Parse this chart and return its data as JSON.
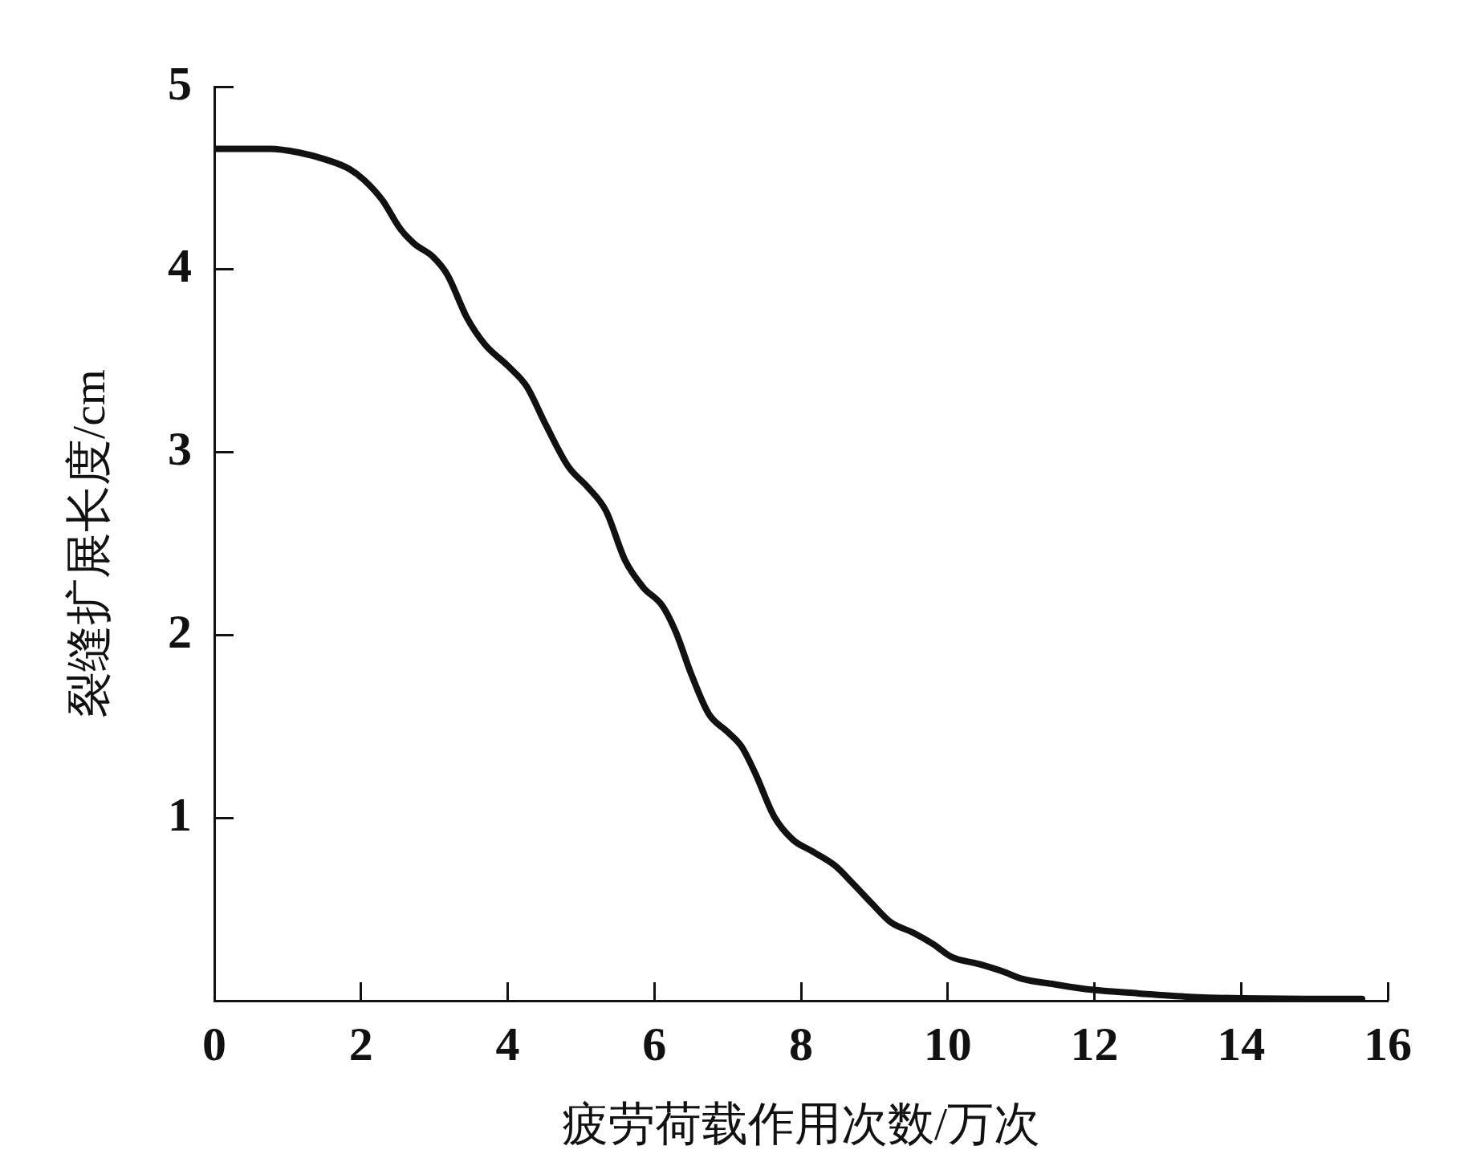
{
  "chart_data": {
    "type": "line",
    "xlabel": "疲劳荷载作用次数/万次",
    "ylabel": "裂缝扩展长度/cm",
    "x": [
      0,
      0.76,
      1.15,
      1.53,
      1.84,
      2.04,
      2.29,
      2.54,
      2.73,
      2.98,
      3.18,
      3.44,
      3.69,
      4.01,
      4.26,
      4.52,
      4.83,
      5.09,
      5.34,
      5.6,
      5.85,
      6.11,
      6.3,
      6.49,
      6.74,
      7.0,
      7.19,
      7.38,
      7.63,
      7.89,
      8.14,
      8.46,
      8.71,
      8.97,
      9.22,
      9.54,
      9.8,
      10.05,
      10.43,
      10.75,
      11.01,
      11.45,
      11.96,
      12.6,
      13.36,
      14.89,
      15.65
    ],
    "series": [
      {
        "color": "#111111",
        "values": [
          4.66,
          4.66,
          4.64,
          4.6,
          4.55,
          4.49,
          4.38,
          4.22,
          4.14,
          4.07,
          3.97,
          3.74,
          3.59,
          3.47,
          3.36,
          3.15,
          2.92,
          2.81,
          2.68,
          2.41,
          2.26,
          2.16,
          2.01,
          1.8,
          1.57,
          1.47,
          1.39,
          1.24,
          1.01,
          0.88,
          0.82,
          0.74,
          0.64,
          0.53,
          0.43,
          0.37,
          0.31,
          0.24,
          0.2,
          0.16,
          0.12,
          0.09,
          0.06,
          0.04,
          0.02,
          0.01,
          0.01
        ]
      }
    ],
    "xlim": [
      0,
      16
    ],
    "ylim": [
      0,
      5
    ],
    "xticks": [
      0,
      2,
      4,
      6,
      8,
      10,
      12,
      14,
      16
    ],
    "yticks": [
      1,
      2,
      3,
      4,
      5
    ],
    "marker": "none",
    "line_style": "solid"
  }
}
